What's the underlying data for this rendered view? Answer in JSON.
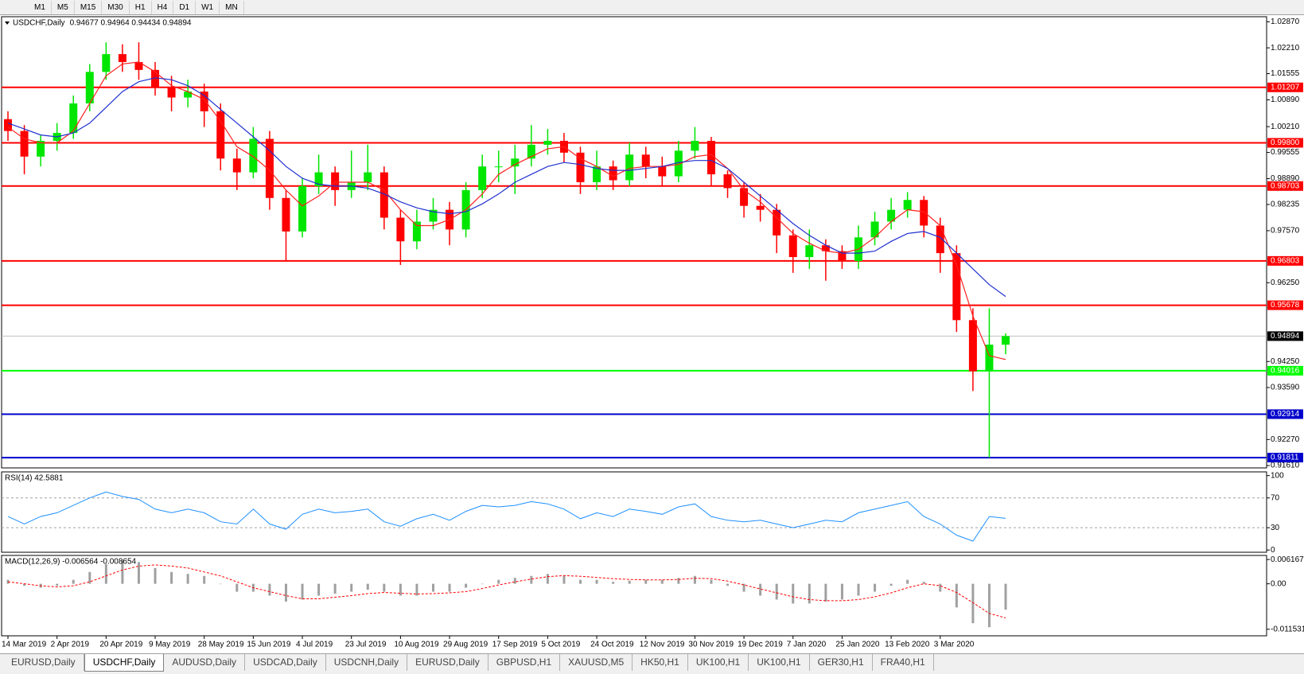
{
  "toolbar": {
    "timeframes": [
      "M1",
      "M5",
      "M15",
      "M30",
      "H1",
      "H4",
      "D1",
      "W1",
      "MN"
    ]
  },
  "tabs": {
    "items": [
      "EURUSD,Daily",
      "USDCHF,Daily",
      "AUDUSD,Daily",
      "USDCAD,Daily",
      "USDCNH,Daily",
      "EURUSD,Daily",
      "GBPUSD,H1",
      "XAUUSD,M5",
      "HK50,H1",
      "UK100,H1",
      "UK100,H1",
      "GER30,H1",
      "FRA40,H1"
    ],
    "active": 1
  },
  "chart_data": [
    {
      "type": "candlestick",
      "title": "USDCHF,Daily",
      "subtitle": "0.94677 0.94964 0.94434 0.94894",
      "categories": [
        "14 Mar 2019",
        null,
        null,
        "2 Apr 2019",
        null,
        null,
        "20 Apr 2019",
        null,
        null,
        "9 May 2019",
        null,
        null,
        "28 May 2019",
        null,
        null,
        "15 Jun 2019",
        null,
        null,
        "4 Jul 2019",
        null,
        null,
        "23 Jul 2019",
        null,
        null,
        "10 Aug 2019",
        null,
        null,
        "29 Aug 2019",
        null,
        null,
        "17 Sep 2019",
        null,
        null,
        "5 Oct 2019",
        null,
        null,
        "24 Oct 2019",
        null,
        null,
        "12 Nov 2019",
        null,
        null,
        "30 Nov 2019",
        null,
        null,
        "19 Dec 2019",
        null,
        null,
        "7 Jan 2020",
        null,
        null,
        "25 Jan 2020",
        null,
        null,
        "13 Feb 2020",
        null,
        null,
        "3 Mar 2020",
        null,
        null,
        null,
        null
      ],
      "open": [
        1.004,
        1.001,
        0.9945,
        0.9985,
        1.0005,
        1.008,
        1.016,
        1.0205,
        1.0185,
        1.0165,
        1.012,
        1.0095,
        1.011,
        1.006,
        0.994,
        0.9905,
        0.999,
        0.984,
        0.9755,
        0.987,
        0.9905,
        0.986,
        0.988,
        0.9905,
        0.979,
        0.973,
        0.978,
        0.981,
        0.976,
        0.986,
        0.992,
        0.992,
        0.994,
        0.9975,
        0.9985,
        0.9955,
        0.988,
        0.992,
        0.9885,
        0.995,
        0.992,
        0.9895,
        0.996,
        0.9985,
        0.99,
        0.9865,
        0.982,
        0.981,
        0.9745,
        0.969,
        0.972,
        0.9705,
        0.968,
        0.974,
        0.978,
        0.981,
        0.9835,
        0.977,
        0.97,
        0.953,
        0.94,
        0.94677
      ],
      "high": [
        1.006,
        1.0025,
        1.0,
        1.003,
        1.01,
        1.018,
        1.0235,
        1.023,
        1.0235,
        1.0185,
        1.015,
        1.014,
        1.013,
        1.008,
        0.9965,
        1.002,
        1.001,
        0.986,
        0.989,
        0.995,
        0.992,
        0.996,
        0.9975,
        0.992,
        0.981,
        0.981,
        0.984,
        0.983,
        0.988,
        0.995,
        0.996,
        0.9975,
        1.0025,
        1.0015,
        1.0005,
        0.997,
        0.996,
        0.9935,
        0.998,
        0.997,
        0.9945,
        0.9985,
        1.002,
        0.9995,
        0.991,
        0.988,
        0.985,
        0.9825,
        0.976,
        0.976,
        0.9735,
        0.972,
        0.977,
        0.9805,
        0.984,
        0.9855,
        0.9845,
        0.979,
        0.972,
        0.956,
        0.956,
        0.94964
      ],
      "low": [
        0.9985,
        0.99,
        0.992,
        0.996,
        0.999,
        1.006,
        1.014,
        1.016,
        1.014,
        1.01,
        1.006,
        1.007,
        1.002,
        0.991,
        0.986,
        0.989,
        0.981,
        0.968,
        0.974,
        0.985,
        0.982,
        0.984,
        0.986,
        0.976,
        0.967,
        0.971,
        0.976,
        0.972,
        0.974,
        0.984,
        0.988,
        0.985,
        0.992,
        0.995,
        0.993,
        0.985,
        0.986,
        0.986,
        0.987,
        0.989,
        0.987,
        0.988,
        0.994,
        0.987,
        0.984,
        0.979,
        0.978,
        0.97,
        0.965,
        0.966,
        0.963,
        0.966,
        0.966,
        0.972,
        0.976,
        0.979,
        0.974,
        0.965,
        0.95,
        0.935,
        0.9181,
        0.94434
      ],
      "close": [
        1.001,
        0.9945,
        0.9985,
        1.0005,
        1.008,
        1.016,
        1.0205,
        1.0185,
        1.0165,
        1.012,
        1.0095,
        1.011,
        1.006,
        0.994,
        0.9905,
        0.999,
        0.984,
        0.9755,
        0.987,
        0.9905,
        0.986,
        0.988,
        0.9905,
        0.979,
        0.973,
        0.978,
        0.981,
        0.976,
        0.986,
        0.992,
        0.992,
        0.994,
        0.9975,
        0.9985,
        0.9955,
        0.988,
        0.992,
        0.9885,
        0.995,
        0.992,
        0.9895,
        0.996,
        0.9985,
        0.99,
        0.9865,
        0.982,
        0.981,
        0.9745,
        0.969,
        0.972,
        0.9705,
        0.968,
        0.974,
        0.978,
        0.981,
        0.9835,
        0.977,
        0.97,
        0.953,
        0.94,
        0.94677,
        0.94894
      ],
      "up_color": "#00e600",
      "down_color": "#ff0000",
      "overlays": [
        {
          "color": "#ff2020",
          "values": [
            1.002,
            0.999,
            0.998,
            0.998,
            1.001,
            1.008,
            1.015,
            1.018,
            1.0185,
            1.016,
            1.0125,
            1.011,
            1.009,
            1.0035,
            0.997,
            0.9945,
            0.991,
            0.986,
            0.982,
            0.9845,
            0.988,
            0.988,
            0.988,
            0.986,
            0.981,
            0.977,
            0.977,
            0.9785,
            0.981,
            0.985,
            0.99,
            0.9925,
            0.9945,
            0.9965,
            0.997,
            0.994,
            0.992,
            0.9895,
            0.9915,
            0.992,
            0.992,
            0.9925,
            0.9945,
            0.995,
            0.9915,
            0.986,
            0.983,
            0.979,
            0.975,
            0.9725,
            0.9705,
            0.97,
            0.971,
            0.974,
            0.978,
            0.981,
            0.9805,
            0.977,
            0.967,
            0.954,
            0.944,
            0.943
          ]
        },
        {
          "color": "#2030d0",
          "values": [
            1.003,
            1.0015,
            1.0,
            0.9995,
            1.0005,
            1.003,
            1.007,
            1.011,
            1.0135,
            1.0145,
            1.014,
            1.0125,
            1.01,
            1.0065,
            1.003,
            0.9995,
            0.996,
            0.992,
            0.989,
            0.9875,
            0.987,
            0.987,
            0.9865,
            0.985,
            0.983,
            0.9815,
            0.9805,
            0.98,
            0.9805,
            0.9825,
            0.985,
            0.988,
            0.99,
            0.992,
            0.993,
            0.9925,
            0.9915,
            0.991,
            0.991,
            0.9915,
            0.992,
            0.993,
            0.9935,
            0.9935,
            0.9915,
            0.988,
            0.9845,
            0.981,
            0.9775,
            0.9745,
            0.972,
            0.97,
            0.97,
            0.9705,
            0.973,
            0.975,
            0.9755,
            0.974,
            0.97,
            0.966,
            0.962,
            0.959
          ]
        }
      ],
      "levels": [
        {
          "value": 1.01207,
          "label": "1.01207",
          "color": "#ff0000"
        },
        {
          "value": 0.998,
          "label": "0.99800",
          "color": "#ff0000"
        },
        {
          "value": 0.98703,
          "label": "0.98703",
          "color": "#ff0000"
        },
        {
          "value": 0.96803,
          "label": "0.96803",
          "color": "#ff0000"
        },
        {
          "value": 0.95678,
          "label": "0.95678",
          "color": "#ff0000"
        },
        {
          "value": 0.94894,
          "label": "0.94894",
          "color": "#c0c0c0",
          "label_fill": "#000000"
        },
        {
          "value": 0.94016,
          "label": "0.94016",
          "color": "#00ff00"
        },
        {
          "value": 0.92914,
          "label": "0.92914",
          "color": "#0000cc"
        },
        {
          "value": 0.91811,
          "label": "0.91811",
          "color": "#0000cc"
        }
      ],
      "ylim": [
        0.9155,
        1.03
      ],
      "yticks": [
        {
          "value": 1.0287,
          "label": "1.02870"
        },
        {
          "value": 1.0221,
          "label": "1.02210"
        },
        {
          "value": 1.01555,
          "label": "1.01555"
        },
        {
          "value": 1.0089,
          "label": "1.00890"
        },
        {
          "value": 1.0021,
          "label": "1.00210"
        },
        {
          "value": 0.99555,
          "label": "0.99555"
        },
        {
          "value": 0.9889,
          "label": "0.98890"
        },
        {
          "value": 0.98235,
          "label": "0.98235"
        },
        {
          "value": 0.9757,
          "label": "0.97570"
        },
        {
          "value": 0.9625,
          "label": "0.96250"
        },
        {
          "value": 0.9425,
          "label": "0.94250"
        },
        {
          "value": 0.9359,
          "label": "0.93590"
        },
        {
          "value": 0.9227,
          "label": "0.92270"
        },
        {
          "value": 0.9161,
          "label": "0.91610"
        }
      ]
    },
    {
      "type": "line",
      "title": "RSI(14) 42.5881",
      "color": "#1e90ff",
      "values": [
        45,
        35,
        45,
        50,
        60,
        70,
        78,
        72,
        68,
        55,
        50,
        55,
        50,
        38,
        35,
        55,
        35,
        28,
        48,
        55,
        50,
        52,
        55,
        38,
        32,
        42,
        48,
        40,
        52,
        60,
        58,
        60,
        65,
        62,
        55,
        42,
        50,
        45,
        55,
        52,
        48,
        58,
        62,
        45,
        40,
        38,
        40,
        35,
        30,
        35,
        40,
        38,
        50,
        55,
        60,
        65,
        45,
        35,
        20,
        12,
        45,
        42.5881
      ],
      "ylim": [
        -3,
        105
      ],
      "yticks": [
        100,
        70,
        30,
        0
      ],
      "levels": [
        70,
        30
      ]
    },
    {
      "type": "macd",
      "title": "MACD(12,26,9) -0.006564 -0.008654",
      "histogram_color": "#a0a0a0",
      "signal_color": "#ff0000",
      "histogram": [
        0.001,
        -0.0005,
        -0.001,
        -0.0005,
        0.001,
        0.003,
        0.005,
        0.006,
        0.0055,
        0.004,
        0.003,
        0.0025,
        0.002,
        0,
        -0.002,
        -0.002,
        -0.003,
        -0.0045,
        -0.004,
        -0.003,
        -0.0025,
        -0.002,
        -0.0015,
        -0.002,
        -0.003,
        -0.003,
        -0.002,
        -0.002,
        -0.001,
        0,
        0.001,
        0.0015,
        0.002,
        0.0025,
        0.002,
        0.001,
        0.001,
        0.0005,
        0.0008,
        0.001,
        0.001,
        0.0015,
        0.002,
        0.001,
        -0.0005,
        -0.002,
        -0.003,
        -0.004,
        -0.005,
        -0.005,
        -0.0045,
        -0.004,
        -0.003,
        -0.002,
        -0.0005,
        0.001,
        0.0005,
        -0.002,
        -0.006,
        -0.01,
        -0.011,
        -0.006564
      ],
      "signal": [
        0.0005,
        0,
        -0.0005,
        -0.0008,
        -0.0005,
        0.0005,
        0.002,
        0.0035,
        0.0045,
        0.0048,
        0.0045,
        0.004,
        0.003,
        0.002,
        0.0005,
        -0.001,
        -0.002,
        -0.003,
        -0.0038,
        -0.0038,
        -0.0034,
        -0.003,
        -0.0025,
        -0.0022,
        -0.0024,
        -0.0026,
        -0.0025,
        -0.0023,
        -0.002,
        -0.0012,
        -0.0003,
        0.0005,
        0.0012,
        0.0018,
        0.0021,
        0.0019,
        0.0016,
        0.0013,
        0.0011,
        0.001,
        0.001,
        0.0011,
        0.0014,
        0.0013,
        0.0007,
        -0.0003,
        -0.0013,
        -0.0023,
        -0.0033,
        -0.004,
        -0.0043,
        -0.0043,
        -0.004,
        -0.0033,
        -0.0023,
        -0.001,
        0,
        -0.0005,
        -0.0022,
        -0.0048,
        -0.0075,
        -0.008654
      ],
      "ylim": [
        -0.0132,
        0.0072
      ],
      "yticks": [
        0.006167,
        {
          "value": 0,
          "label": "0.00"
        },
        -0.011531
      ]
    }
  ]
}
